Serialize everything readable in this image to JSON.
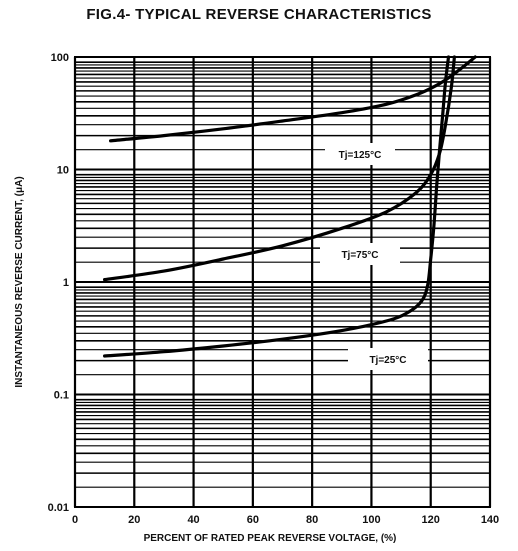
{
  "chart_data": {
    "type": "line",
    "title": "FIG.4- TYPICAL REVERSE CHARACTERISTICS",
    "xlabel": "PERCENT OF RATED PEAK REVERSE VOLTAGE, (%)",
    "ylabel": "INSTANTANEOUS REVERSE CURRENT, (μA)",
    "xlim": [
      0,
      140
    ],
    "ylim": [
      0.01,
      100
    ],
    "yscale": "log",
    "grid": true,
    "x_ticks": [
      0,
      20,
      40,
      60,
      80,
      100,
      120,
      140
    ],
    "x_tick_labels": [
      "0",
      "20",
      "40",
      "60",
      "80",
      "100",
      "120",
      "140"
    ],
    "y_ticks": [
      0.01,
      0.1,
      1,
      10,
      100
    ],
    "y_tick_labels": [
      "0.01",
      "0.1",
      "1",
      "10",
      "100"
    ],
    "series": [
      {
        "name": "Tj=125°C",
        "x": [
          12,
          30,
          50,
          70,
          90,
          105,
          115,
          122,
          127,
          131,
          135
        ],
        "y": [
          18,
          20,
          23,
          27,
          32,
          38,
          46,
          56,
          68,
          82,
          100
        ]
      },
      {
        "name": "Tj=75°C",
        "x": [
          10,
          30,
          50,
          70,
          90,
          105,
          115,
          120,
          123,
          125,
          127,
          128
        ],
        "y": [
          1.05,
          1.25,
          1.6,
          2.1,
          3.0,
          4.2,
          6.2,
          9.0,
          14,
          25,
          55,
          100
        ]
      },
      {
        "name": "Tj=25°C",
        "x": [
          10,
          30,
          50,
          70,
          90,
          105,
          112,
          117,
          119,
          120,
          121,
          122,
          123,
          124,
          125,
          126
        ],
        "y": [
          0.22,
          0.24,
          0.27,
          0.31,
          0.37,
          0.45,
          0.53,
          0.68,
          0.95,
          1.6,
          3.0,
          7,
          15,
          30,
          60,
          100
        ]
      }
    ]
  }
}
